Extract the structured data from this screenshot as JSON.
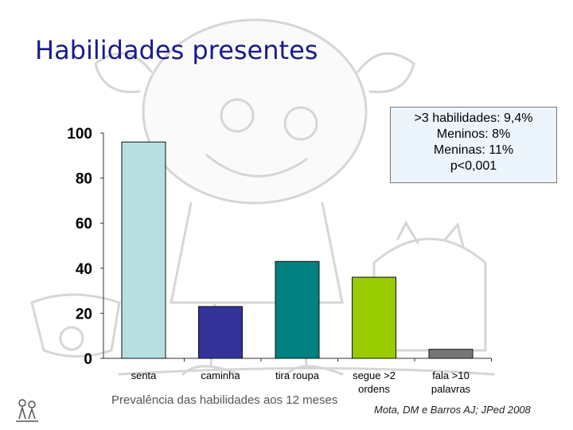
{
  "slide": {
    "title": "Habilidades presentes",
    "caption": "Prevalência das habilidades aos 12 meses",
    "citation": "Mota, DM e Barros AJ; JPed 2008"
  },
  "info_box": {
    "lines": [
      ">3 habilidades: 9,4%",
      "Meninos: 8%",
      "Meninas: 11%",
      "p<0,001"
    ]
  },
  "colors": {
    "title": "#1a1a8c",
    "bars": [
      "#b7dfe2",
      "#333399",
      "#008080",
      "#99cc00",
      "#777777"
    ]
  },
  "chart_data": {
    "type": "bar",
    "categories": [
      "senta",
      "caminha",
      "tira roupa",
      "segue >2 ordens",
      "fala >10 palavras"
    ],
    "category_lines": [
      [
        "senta"
      ],
      [
        "caminha"
      ],
      [
        "tira roupa"
      ],
      [
        "segue >2",
        "ordens"
      ],
      [
        "fala >10",
        "palavras"
      ]
    ],
    "values": [
      96,
      23,
      43,
      36,
      4
    ],
    "yticks": [
      0,
      20,
      40,
      60,
      80,
      100
    ],
    "ylim": [
      0,
      100
    ],
    "grid": false,
    "legend": "none"
  }
}
